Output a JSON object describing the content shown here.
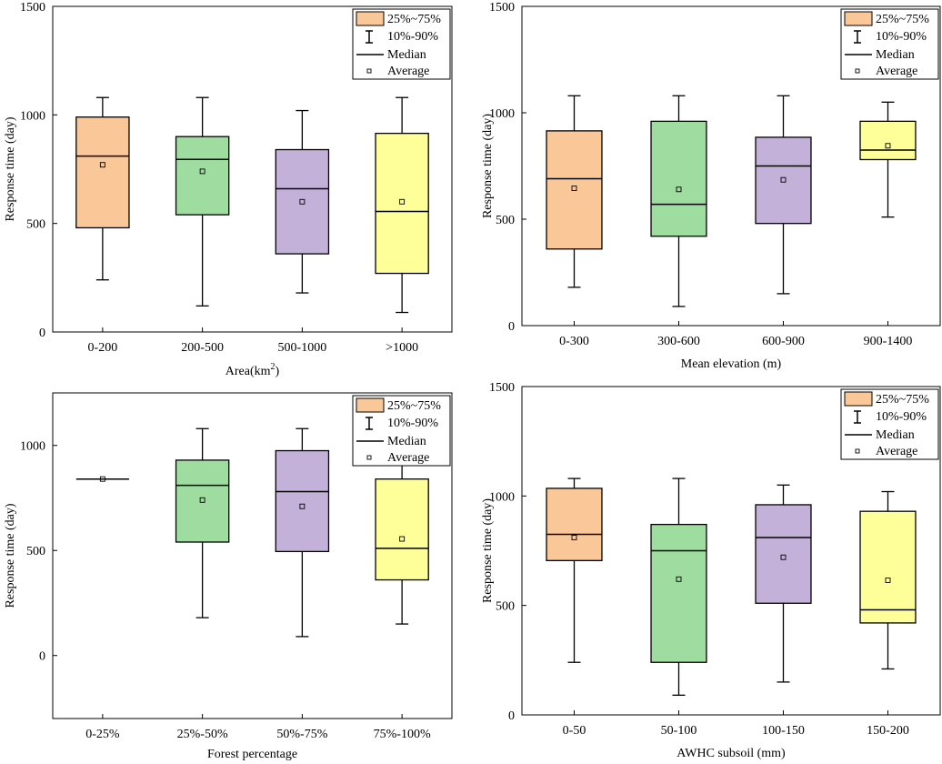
{
  "colors": [
    "#FAC898",
    "#9FDC9F",
    "#C3B1D9",
    "#FFFF99"
  ],
  "legend": {
    "box_label": "25%~75%",
    "whisker_label": "10%-90%",
    "median_label": "Median",
    "average_label": "Average"
  },
  "chart_data": [
    {
      "type": "box",
      "xlabel": "Area(km",
      "xlabel_sup": "2",
      "xlabel_end": ")",
      "ylabel": "Response time (day)",
      "ylim": [
        0,
        1500
      ],
      "yticks": [
        "0",
        "500",
        "1000",
        "1500"
      ],
      "categories": [
        "0-200",
        "200-500",
        "500-1000",
        ">1000"
      ],
      "boxes": [
        {
          "p10": 240,
          "q1": 480,
          "median": 810,
          "q3": 990,
          "p90": 1080,
          "mean": 770
        },
        {
          "p10": 120,
          "q1": 540,
          "median": 795,
          "q3": 900,
          "p90": 1080,
          "mean": 740
        },
        {
          "p10": 180,
          "q1": 360,
          "median": 660,
          "q3": 840,
          "p90": 1020,
          "mean": 600
        },
        {
          "p10": 90,
          "q1": 270,
          "median": 555,
          "q3": 915,
          "p90": 1080,
          "mean": 600
        }
      ]
    },
    {
      "type": "box",
      "xlabel": "Mean elevation (m)",
      "ylabel": "Response time (day)",
      "ylim": [
        0,
        1500
      ],
      "yticks": [
        "0",
        "500",
        "1000",
        "1500"
      ],
      "categories": [
        "0-300",
        "300-600",
        "600-900",
        "900-1400"
      ],
      "boxes": [
        {
          "p10": 180,
          "q1": 360,
          "median": 690,
          "q3": 915,
          "p90": 1080,
          "mean": 645
        },
        {
          "p10": 90,
          "q1": 420,
          "median": 570,
          "q3": 960,
          "p90": 1080,
          "mean": 640
        },
        {
          "p10": 150,
          "q1": 480,
          "median": 750,
          "q3": 885,
          "p90": 1080,
          "mean": 685
        },
        {
          "p10": 510,
          "q1": 780,
          "median": 825,
          "q3": 960,
          "p90": 1050,
          "mean": 845
        }
      ]
    },
    {
      "type": "box",
      "xlabel": "Forest percentage",
      "ylabel": "Response time (day)",
      "ylim": [
        -300,
        1250
      ],
      "yticks": [
        "0",
        "500",
        "1000"
      ],
      "categories": [
        "0-25%",
        "25%-50%",
        "50%-75%",
        "75%-100%"
      ],
      "boxes": [
        {
          "p10": 840,
          "q1": 840,
          "median": 840,
          "q3": 840,
          "p90": 840,
          "mean": 840
        },
        {
          "p10": 180,
          "q1": 540,
          "median": 810,
          "q3": 930,
          "p90": 1080,
          "mean": 740
        },
        {
          "p10": 90,
          "q1": 495,
          "median": 780,
          "q3": 975,
          "p90": 1080,
          "mean": 710
        },
        {
          "p10": 150,
          "q1": 360,
          "median": 510,
          "q3": 840,
          "p90": 930,
          "mean": 555
        }
      ]
    },
    {
      "type": "box",
      "xlabel": "AWHC subsoil (mm)",
      "ylabel": "Response time (day)",
      "ylim": [
        0,
        1500
      ],
      "yticks": [
        "0",
        "500",
        "1000",
        "1500"
      ],
      "categories": [
        "0-50",
        "50-100",
        "100-150",
        "150-200"
      ],
      "boxes": [
        {
          "p10": 240,
          "q1": 705,
          "median": 825,
          "q3": 1035,
          "p90": 1080,
          "mean": 810
        },
        {
          "p10": 90,
          "q1": 240,
          "median": 750,
          "q3": 870,
          "p90": 1080,
          "mean": 620
        },
        {
          "p10": 150,
          "q1": 510,
          "median": 810,
          "q3": 960,
          "p90": 1050,
          "mean": 720
        },
        {
          "p10": 210,
          "q1": 420,
          "median": 480,
          "q3": 930,
          "p90": 1020,
          "mean": 615
        }
      ]
    }
  ]
}
